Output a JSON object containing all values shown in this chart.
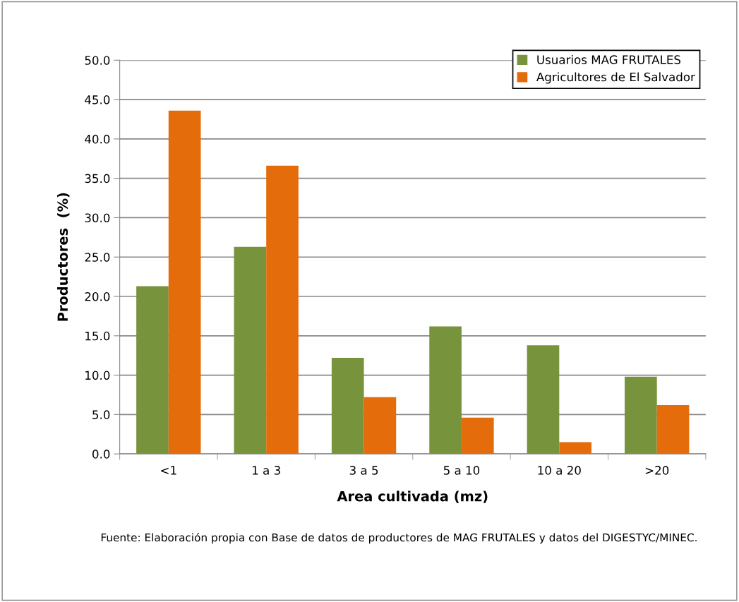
{
  "chart_data": {
    "type": "bar",
    "xlabel": "Area cultivada (mz)",
    "ylabel": "Productores  (%)",
    "categories": [
      "<1",
      "1 a 3",
      "3 a 5",
      "5 a 10",
      "10 a 20",
      ">20"
    ],
    "series": [
      {
        "name": "Usuarios MAG FRUTALES",
        "color": "#77933c",
        "values": [
          21.3,
          26.3,
          12.2,
          16.2,
          13.8,
          9.8
        ]
      },
      {
        "name": "Agricultores de El Salvador",
        "color": "#e46c0a",
        "values": [
          43.6,
          36.6,
          7.2,
          4.6,
          1.5,
          6.2
        ]
      }
    ],
    "ylim": [
      0,
      50
    ],
    "yticks": [
      {
        "value": 0,
        "label": "0.0"
      },
      {
        "value": 5,
        "label": "5.0"
      },
      {
        "value": 10,
        "label": "10.0"
      },
      {
        "value": 15,
        "label": "15.0"
      },
      {
        "value": 20,
        "label": "20.0"
      },
      {
        "value": 25,
        "label": "25.0"
      },
      {
        "value": 30,
        "label": "30.0"
      },
      {
        "value": 35,
        "label": "35.0"
      },
      {
        "value": 40,
        "label": "40.0"
      },
      {
        "value": 45,
        "label": "45.0"
      },
      {
        "value": 50,
        "label": "50.0"
      }
    ],
    "grid": "y",
    "legend": "top right",
    "annotations": [
      "Fuente: Elaboración propia con Base de datos de productores de MAG FRUTALES y datos del DIGESTYC/MINEC."
    ]
  }
}
